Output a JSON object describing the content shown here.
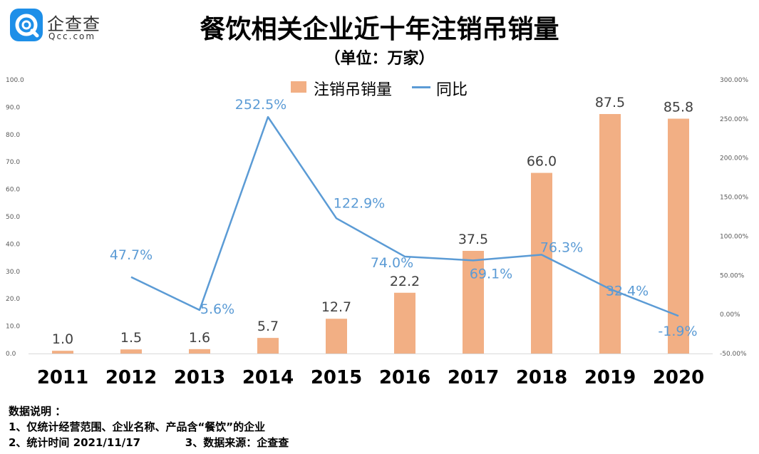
{
  "logo": {
    "name": "企查查",
    "domain": "Qcc.com",
    "icon": "qcc-logo-icon"
  },
  "chart_data": {
    "type": "bar+line",
    "title": "餐饮相关企业近十年注销吊销量",
    "subtitle": "（单位：万家）",
    "categories": [
      "2011",
      "2012",
      "2013",
      "2014",
      "2015",
      "2016",
      "2017",
      "2018",
      "2019",
      "2020"
    ],
    "series": [
      {
        "name": "注销吊销量",
        "type": "bar",
        "axis": "left",
        "color": "#f2af84",
        "values": [
          1.0,
          1.5,
          1.6,
          5.7,
          12.7,
          22.2,
          37.5,
          66.0,
          87.5,
          85.8
        ],
        "labels": [
          "1.0",
          "1.5",
          "1.6",
          "5.7",
          "12.7",
          "22.2",
          "37.5",
          "66.0",
          "87.5",
          "85.8"
        ]
      },
      {
        "name": "同比",
        "type": "line",
        "axis": "right",
        "color": "#5b9bd5",
        "values": [
          null,
          47.7,
          5.6,
          252.5,
          122.9,
          74.0,
          69.1,
          76.3,
          32.4,
          -1.9
        ],
        "labels": [
          "",
          "47.7%",
          "5.6%",
          "252.5%",
          "122.9%",
          "74.0%",
          "69.1%",
          "76.3%",
          "32.4%",
          "-1.9%"
        ]
      }
    ],
    "y_left": {
      "min": 0,
      "max": 100,
      "step": 10,
      "ticks": [
        "0.0",
        "10.0",
        "20.0",
        "30.0",
        "40.0",
        "50.0",
        "60.0",
        "70.0",
        "80.0",
        "90.0",
        "100.0"
      ]
    },
    "y_right": {
      "min": -50,
      "max": 300,
      "step": 50,
      "ticks": [
        "-50.00%",
        "0.00%",
        "50.00%",
        "100.00%",
        "150.00%",
        "200.00%",
        "250.00%",
        "300.00%"
      ]
    },
    "legend": "top-center"
  },
  "notes": {
    "heading": "数据说明 ：",
    "line1": "1、仅统计经营范围、企业名称、产品含“餐饮”的企业",
    "line2": "2、统计时间 2021/11/17            3、数据来源：企查查"
  }
}
